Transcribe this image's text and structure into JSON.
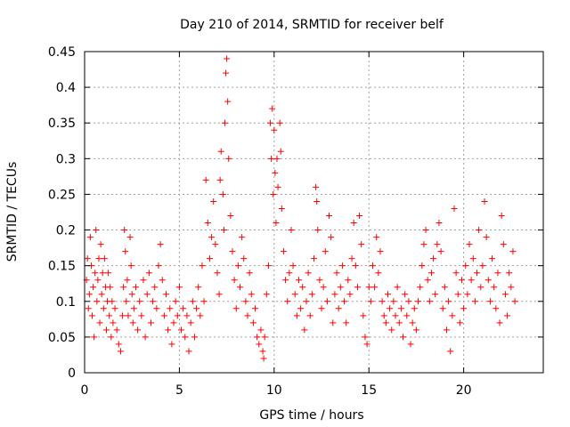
{
  "chart_data": {
    "type": "scatter",
    "title": "Day 210 of 2014, SRMTID for receiver belf",
    "xlabel": "GPS time / hours",
    "ylabel": "SRMTID / TECUs",
    "xlim": [
      0,
      24.2
    ],
    "ylim": [
      0,
      0.45
    ],
    "x_ticks": [
      0,
      5,
      10,
      15,
      20
    ],
    "x_tick_labels": [
      "0",
      "5",
      "10",
      "15",
      "20"
    ],
    "y_ticks": [
      0,
      0.05,
      0.1,
      0.15,
      0.2,
      0.25,
      0.3,
      0.35,
      0.4,
      0.45
    ],
    "y_tick_labels": [
      "0",
      "0.05",
      "0.1",
      "0.15",
      "0.2",
      "0.25",
      "0.3",
      "0.35",
      "0.4",
      "0.45"
    ],
    "grid": true,
    "marker": "plus",
    "color": "#ff0000",
    "series": [
      {
        "name": "SRMTID",
        "points": [
          [
            0.1,
            0.13
          ],
          [
            0.15,
            0.16
          ],
          [
            0.2,
            0.09
          ],
          [
            0.25,
            0.11
          ],
          [
            0.3,
            0.19
          ],
          [
            0.35,
            0.15
          ],
          [
            0.4,
            0.08
          ],
          [
            0.45,
            0.12
          ],
          [
            0.5,
            0.05
          ],
          [
            0.55,
            0.14
          ],
          [
            0.6,
            0.2
          ],
          [
            0.65,
            0.1
          ],
          [
            0.7,
            0.13
          ],
          [
            0.75,
            0.16
          ],
          [
            0.8,
            0.07
          ],
          [
            0.85,
            0.18
          ],
          [
            0.9,
            0.11
          ],
          [
            0.95,
            0.14
          ],
          [
            1.0,
            0.09
          ],
          [
            1.05,
            0.16
          ],
          [
            1.1,
            0.12
          ],
          [
            1.15,
            0.06
          ],
          [
            1.2,
            0.1
          ],
          [
            1.25,
            0.14
          ],
          [
            1.3,
            0.08
          ],
          [
            1.35,
            0.12
          ],
          [
            1.4,
            0.05
          ],
          [
            1.45,
            0.1
          ],
          [
            1.5,
            0.07
          ],
          [
            1.6,
            0.09
          ],
          [
            1.7,
            0.06
          ],
          [
            1.8,
            0.04
          ],
          [
            1.9,
            0.03
          ],
          [
            2.0,
            0.08
          ],
          [
            2.05,
            0.12
          ],
          [
            2.1,
            0.2
          ],
          [
            2.15,
            0.17
          ],
          [
            2.2,
            0.1
          ],
          [
            2.25,
            0.13
          ],
          [
            2.3,
            0.08
          ],
          [
            2.4,
            0.19
          ],
          [
            2.45,
            0.15
          ],
          [
            2.5,
            0.11
          ],
          [
            2.55,
            0.07
          ],
          [
            2.6,
            0.09
          ],
          [
            2.7,
            0.12
          ],
          [
            2.8,
            0.06
          ],
          [
            2.9,
            0.1
          ],
          [
            3.0,
            0.08
          ],
          [
            3.1,
            0.13
          ],
          [
            3.2,
            0.05
          ],
          [
            3.3,
            0.11
          ],
          [
            3.4,
            0.14
          ],
          [
            3.5,
            0.07
          ],
          [
            3.6,
            0.1
          ],
          [
            3.7,
            0.12
          ],
          [
            3.8,
            0.09
          ],
          [
            3.9,
            0.15
          ],
          [
            4.0,
            0.18
          ],
          [
            4.1,
            0.13
          ],
          [
            4.2,
            0.08
          ],
          [
            4.3,
            0.11
          ],
          [
            4.4,
            0.06
          ],
          [
            4.5,
            0.09
          ],
          [
            4.6,
            0.04
          ],
          [
            4.7,
            0.07
          ],
          [
            4.8,
            0.1
          ],
          [
            4.9,
            0.08
          ],
          [
            5.0,
            0.12
          ],
          [
            5.1,
            0.06
          ],
          [
            5.2,
            0.09
          ],
          [
            5.3,
            0.05
          ],
          [
            5.4,
            0.08
          ],
          [
            5.5,
            0.03
          ],
          [
            5.6,
            0.07
          ],
          [
            5.7,
            0.1
          ],
          [
            5.8,
            0.05
          ],
          [
            5.9,
            0.09
          ],
          [
            6.0,
            0.12
          ],
          [
            6.1,
            0.08
          ],
          [
            6.2,
            0.15
          ],
          [
            6.3,
            0.1
          ],
          [
            6.4,
            0.27
          ],
          [
            6.5,
            0.21
          ],
          [
            6.6,
            0.16
          ],
          [
            6.7,
            0.19
          ],
          [
            6.8,
            0.24
          ],
          [
            6.9,
            0.18
          ],
          [
            7.0,
            0.14
          ],
          [
            7.1,
            0.11
          ],
          [
            7.15,
            0.27
          ],
          [
            7.2,
            0.31
          ],
          [
            7.3,
            0.25
          ],
          [
            7.35,
            0.2
          ],
          [
            7.4,
            0.35
          ],
          [
            7.45,
            0.42
          ],
          [
            7.5,
            0.44
          ],
          [
            7.55,
            0.38
          ],
          [
            7.6,
            0.3
          ],
          [
            7.7,
            0.22
          ],
          [
            7.8,
            0.17
          ],
          [
            7.9,
            0.13
          ],
          [
            8.0,
            0.09
          ],
          [
            8.1,
            0.15
          ],
          [
            8.2,
            0.12
          ],
          [
            8.3,
            0.19
          ],
          [
            8.4,
            0.16
          ],
          [
            8.5,
            0.1
          ],
          [
            8.6,
            0.08
          ],
          [
            8.7,
            0.14
          ],
          [
            8.8,
            0.11
          ],
          [
            8.9,
            0.07
          ],
          [
            9.0,
            0.09
          ],
          [
            9.1,
            0.05
          ],
          [
            9.2,
            0.04
          ],
          [
            9.3,
            0.06
          ],
          [
            9.4,
            0.03
          ],
          [
            9.45,
            0.02
          ],
          [
            9.5,
            0.05
          ],
          [
            9.6,
            0.11
          ],
          [
            9.7,
            0.15
          ],
          [
            9.8,
            0.35
          ],
          [
            9.85,
            0.3
          ],
          [
            9.9,
            0.37
          ],
          [
            9.95,
            0.25
          ],
          [
            10.0,
            0.34
          ],
          [
            10.05,
            0.28
          ],
          [
            10.1,
            0.21
          ],
          [
            10.15,
            0.3
          ],
          [
            10.2,
            0.26
          ],
          [
            10.3,
            0.35
          ],
          [
            10.35,
            0.31
          ],
          [
            10.4,
            0.23
          ],
          [
            10.5,
            0.17
          ],
          [
            10.6,
            0.13
          ],
          [
            10.7,
            0.1
          ],
          [
            10.8,
            0.14
          ],
          [
            10.9,
            0.2
          ],
          [
            11.0,
            0.15
          ],
          [
            11.1,
            0.11
          ],
          [
            11.2,
            0.08
          ],
          [
            11.3,
            0.13
          ],
          [
            11.4,
            0.09
          ],
          [
            11.5,
            0.12
          ],
          [
            11.6,
            0.06
          ],
          [
            11.7,
            0.1
          ],
          [
            11.8,
            0.14
          ],
          [
            11.9,
            0.08
          ],
          [
            12.0,
            0.11
          ],
          [
            12.1,
            0.16
          ],
          [
            12.2,
            0.26
          ],
          [
            12.25,
            0.24
          ],
          [
            12.3,
            0.2
          ],
          [
            12.4,
            0.13
          ],
          [
            12.5,
            0.09
          ],
          [
            12.6,
            0.12
          ],
          [
            12.7,
            0.17
          ],
          [
            12.8,
            0.1
          ],
          [
            12.9,
            0.22
          ],
          [
            13.0,
            0.19
          ],
          [
            13.1,
            0.07
          ],
          [
            13.2,
            0.11
          ],
          [
            13.3,
            0.14
          ],
          [
            13.4,
            0.09
          ],
          [
            13.5,
            0.12
          ],
          [
            13.6,
            0.15
          ],
          [
            13.7,
            0.1
          ],
          [
            13.8,
            0.07
          ],
          [
            13.9,
            0.13
          ],
          [
            14.0,
            0.11
          ],
          [
            14.1,
            0.16
          ],
          [
            14.2,
            0.21
          ],
          [
            14.3,
            0.15
          ],
          [
            14.4,
            0.12
          ],
          [
            14.5,
            0.22
          ],
          [
            14.6,
            0.18
          ],
          [
            14.7,
            0.08
          ],
          [
            14.8,
            0.05
          ],
          [
            14.9,
            0.04
          ],
          [
            15.0,
            0.12
          ],
          [
            15.1,
            0.1
          ],
          [
            15.2,
            0.15
          ],
          [
            15.3,
            0.12
          ],
          [
            15.4,
            0.19
          ],
          [
            15.5,
            0.14
          ],
          [
            15.6,
            0.17
          ],
          [
            15.7,
            0.1
          ],
          [
            15.8,
            0.08
          ],
          [
            15.9,
            0.07
          ],
          [
            16.0,
            0.11
          ],
          [
            16.1,
            0.09
          ],
          [
            16.2,
            0.06
          ],
          [
            16.3,
            0.1
          ],
          [
            16.4,
            0.08
          ],
          [
            16.5,
            0.12
          ],
          [
            16.6,
            0.07
          ],
          [
            16.7,
            0.09
          ],
          [
            16.8,
            0.05
          ],
          [
            16.9,
            0.11
          ],
          [
            17.0,
            0.08
          ],
          [
            17.1,
            0.1
          ],
          [
            17.2,
            0.04
          ],
          [
            17.3,
            0.07
          ],
          [
            17.4,
            0.09
          ],
          [
            17.5,
            0.06
          ],
          [
            17.6,
            0.1
          ],
          [
            17.7,
            0.12
          ],
          [
            17.8,
            0.15
          ],
          [
            17.9,
            0.18
          ],
          [
            18.0,
            0.2
          ],
          [
            18.1,
            0.13
          ],
          [
            18.2,
            0.1
          ],
          [
            18.3,
            0.14
          ],
          [
            18.4,
            0.16
          ],
          [
            18.5,
            0.11
          ],
          [
            18.6,
            0.18
          ],
          [
            18.7,
            0.21
          ],
          [
            18.8,
            0.17
          ],
          [
            18.9,
            0.09
          ],
          [
            19.0,
            0.12
          ],
          [
            19.1,
            0.06
          ],
          [
            19.2,
            0.1
          ],
          [
            19.3,
            0.03
          ],
          [
            19.4,
            0.08
          ],
          [
            19.5,
            0.23
          ],
          [
            19.6,
            0.14
          ],
          [
            19.7,
            0.11
          ],
          [
            19.8,
            0.07
          ],
          [
            19.9,
            0.13
          ],
          [
            20.0,
            0.09
          ],
          [
            20.1,
            0.15
          ],
          [
            20.2,
            0.11
          ],
          [
            20.3,
            0.18
          ],
          [
            20.4,
            0.13
          ],
          [
            20.5,
            0.16
          ],
          [
            20.6,
            0.1
          ],
          [
            20.7,
            0.14
          ],
          [
            20.8,
            0.2
          ],
          [
            20.9,
            0.12
          ],
          [
            21.0,
            0.15
          ],
          [
            21.1,
            0.24
          ],
          [
            21.2,
            0.19
          ],
          [
            21.3,
            0.13
          ],
          [
            21.4,
            0.1
          ],
          [
            21.5,
            0.16
          ],
          [
            21.6,
            0.12
          ],
          [
            21.7,
            0.09
          ],
          [
            21.8,
            0.14
          ],
          [
            21.9,
            0.07
          ],
          [
            22.0,
            0.22
          ],
          [
            22.1,
            0.18
          ],
          [
            22.2,
            0.11
          ],
          [
            22.3,
            0.08
          ],
          [
            22.4,
            0.14
          ],
          [
            22.5,
            0.12
          ],
          [
            22.6,
            0.17
          ],
          [
            22.7,
            0.1
          ]
        ]
      }
    ]
  }
}
